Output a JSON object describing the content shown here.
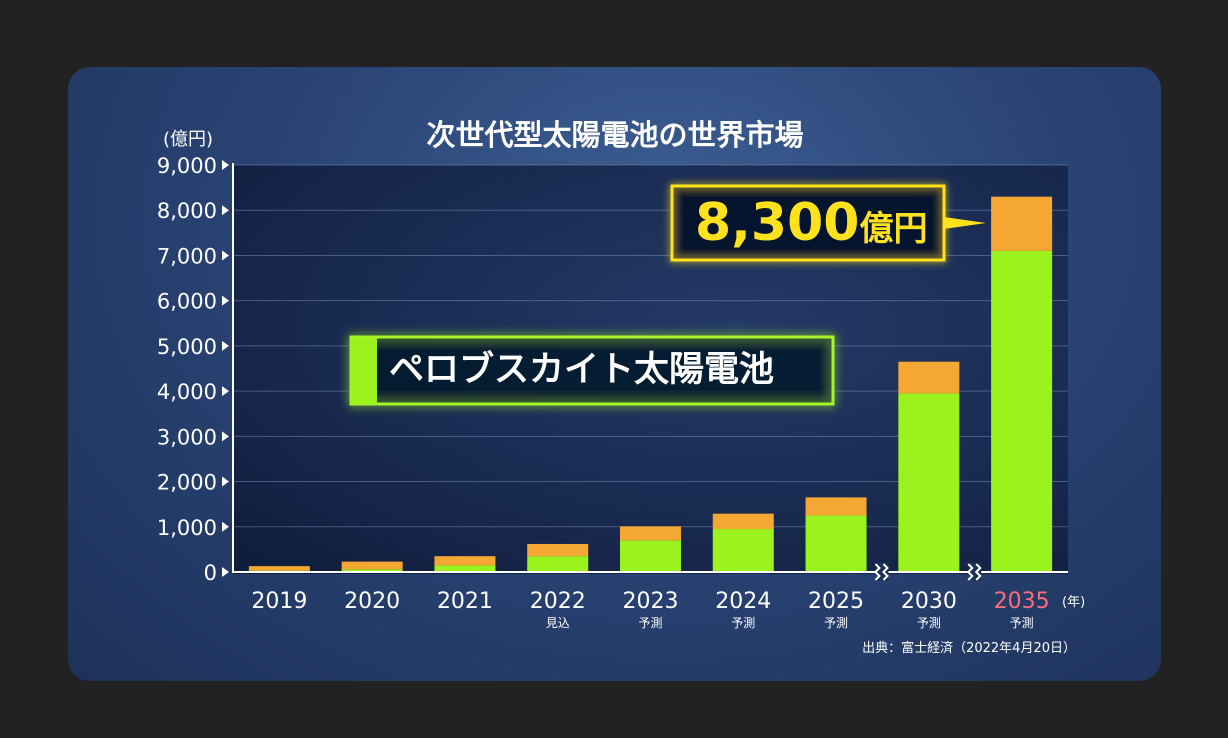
{
  "chart_data": {
    "type": "bar",
    "title": "次世代型太陽電池の世界市場",
    "y_unit": "(億円)",
    "x_unit": "(年)",
    "categories": [
      "2019",
      "2020",
      "2021",
      "2022",
      "2023",
      "2024",
      "2025",
      "2030",
      "2035"
    ],
    "category_notes": [
      "",
      "",
      "",
      "見込",
      "予測",
      "予測",
      "予測",
      "予測",
      "予測"
    ],
    "highlight_category": "2035",
    "highlight_color": "#ff6b78",
    "ylim": [
      0,
      9000
    ],
    "y_ticks": [
      "0",
      "1,000",
      "2,000",
      "3,000",
      "4,000",
      "5,000",
      "6,000",
      "7,000",
      "8,000",
      "9,000"
    ],
    "grid": true,
    "series": [
      {
        "name": "ペロブスカイト太陽電池",
        "color": "#9cf21c",
        "values": [
          30,
          60,
          150,
          350,
          700,
          950,
          1250,
          3950,
          7100
        ]
      },
      {
        "color": "#f5a733",
        "values": [
          100,
          170,
          200,
          270,
          310,
          340,
          400,
          700,
          1200
        ]
      }
    ],
    "axis_breaks_before": [
      "2030",
      "2035"
    ],
    "annotations": {
      "callout_value": "8,300",
      "callout_unit": "億円",
      "series_label": "ペロブスカイト太陽電池"
    },
    "source": "出典：富士経済（2022年4月20日）"
  }
}
